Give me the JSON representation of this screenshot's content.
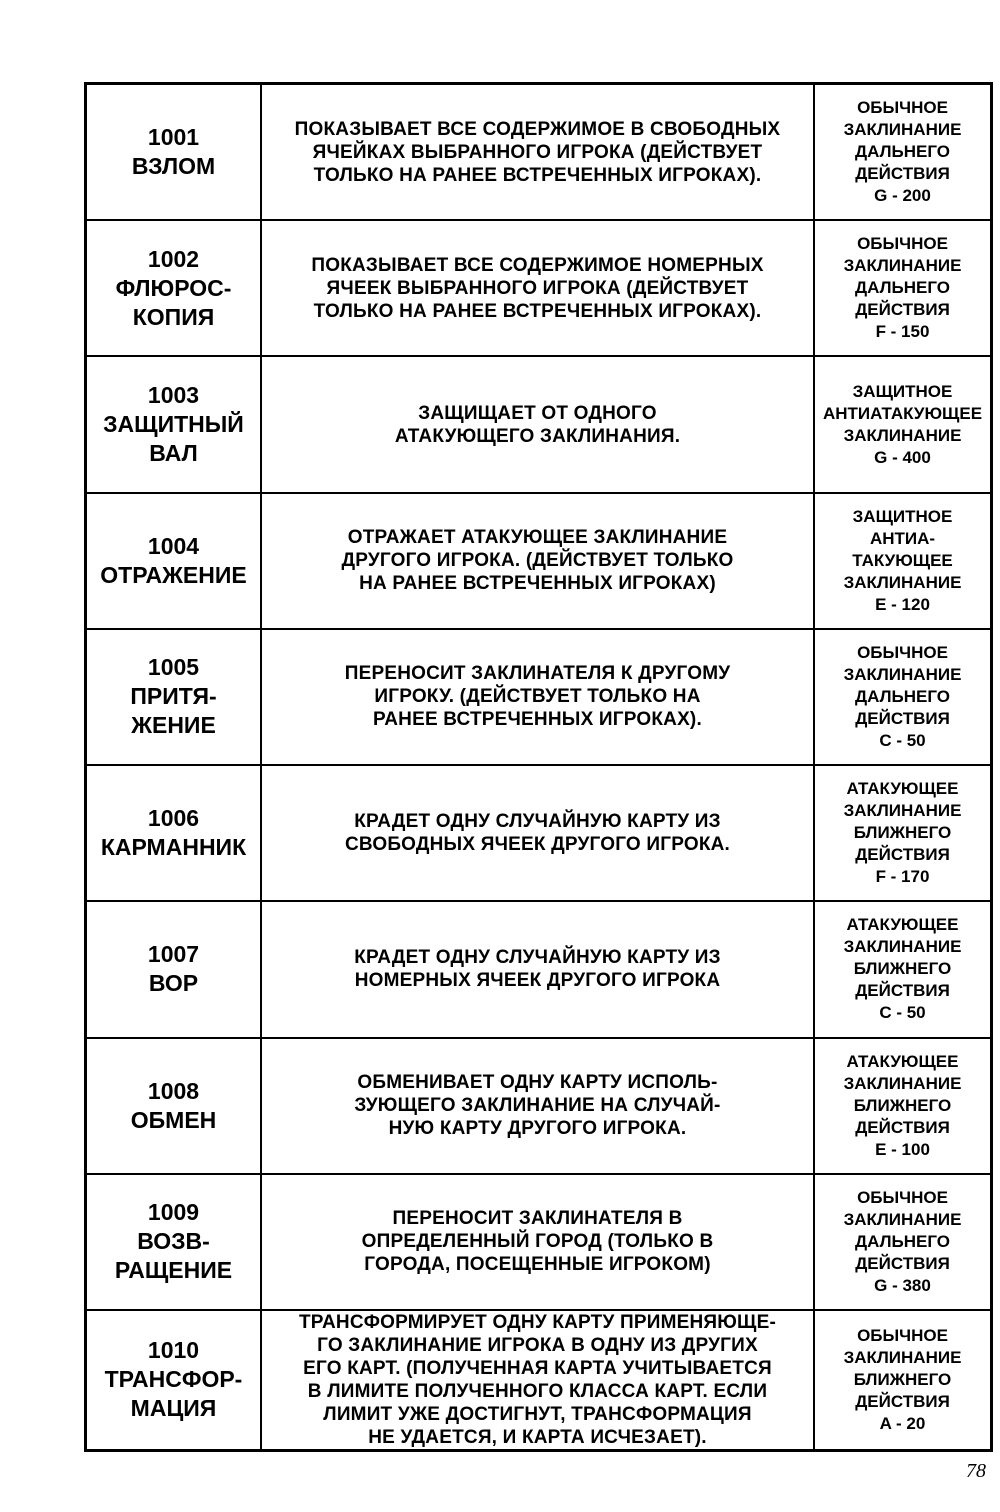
{
  "spells": [
    {
      "name": "1001\nВЗЛОМ",
      "description": "ПОКАЗЫВАЕТ ВСЕ СОДЕРЖИМОЕ  В СВОБОДНЫХ\nЯЧЕЙКАХ ВЫБРАННОГО ИГРОКА (ДЕЙСТВУЕТ\nТОЛЬКО НА РАНЕЕ ВСТРЕЧЕННЫХ ИГРОКАХ).",
      "type": "ОБЫЧНОЕ\nЗАКЛИНАНИЕ\nДАЛЬНЕГО\nДЕЙСТВИЯ\nG - 200"
    },
    {
      "name": "1002\nФЛЮРОС-\nКОПИЯ",
      "description": "ПОКАЗЫВАЕТ ВСЕ СОДЕРЖИМОЕ  НОМЕРНЫХ\nЯЧЕЕК ВЫБРАННОГО ИГРОКА (ДЕЙСТВУЕТ\nТОЛЬКО НА РАНЕЕ ВСТРЕЧЕННЫХ ИГРОКАХ).",
      "type": "ОБЫЧНОЕ\nЗАКЛИНАНИЕ\nДАЛЬНЕГО\nДЕЙСТВИЯ\nF - 150"
    },
    {
      "name": "1003\nЗАЩИТНЫЙ\nВАЛ",
      "description": "ЗАЩИЩАЕТ ОТ ОДНОГО\nАТАКУЮЩЕГО ЗАКЛИНАНИЯ.",
      "type": "ЗАЩИТНОЕ\nАНТИАТАКУЮЩЕЕ\nЗАКЛИНАНИЕ\nG - 400"
    },
    {
      "name": "1004\nОТРАЖЕНИЕ",
      "description": "ОТРАЖАЕТ АТАКУЮЩЕЕ ЗАКЛИНАНИЕ\nДРУГОГО ИГРОКА. (ДЕЙСТВУЕТ ТОЛЬКО\nНА РАНЕЕ ВСТРЕЧЕННЫХ ИГРОКАХ)",
      "type": "ЗАЩИТНОЕ\nАНТИА-\nТАКУЮЩЕЕ\nЗАКЛИНАНИЕ\nE - 120"
    },
    {
      "name": "1005\nПРИТЯ-\nЖЕНИЕ",
      "description": "ПЕРЕНОСИТ ЗАКЛИНАТЕЛЯ К ДРУГОМУ\nИГРОКУ. (ДЕЙСТВУЕТ ТОЛЬКО НА\nРАНЕЕ ВСТРЕЧЕННЫХ ИГРОКАХ).",
      "type": "ОБЫЧНОЕ\nЗАКЛИНАНИЕ\nДАЛЬНЕГО\nДЕЙСТВИЯ\nC - 50"
    },
    {
      "name": "1006\nКАРМАННИК",
      "description": "КРАДЕТ ОДНУ СЛУЧАЙНУЮ КАРТУ ИЗ\nСВОБОДНЫХ ЯЧЕЕК ДРУГОГО ИГРОКА.",
      "type": "АТАКУЮЩЕЕ\nЗАКЛИНАНИЕ\nБЛИЖНЕГО\nДЕЙСТВИЯ\nF - 170"
    },
    {
      "name": "1007\nВОР",
      "description": "КРАДЕТ ОДНУ СЛУЧАЙНУЮ КАРТУ ИЗ\nНОМЕРНЫХ ЯЧЕЕК ДРУГОГО ИГРОКА",
      "type": "АТАКУЮЩЕЕ\nЗАКЛИНАНИЕ\nБЛИЖНЕГО\nДЕЙСТВИЯ\nC - 50"
    },
    {
      "name": "1008\nОБМЕН",
      "description": "ОБМЕНИВАЕТ ОДНУ КАРТУ ИСПОЛЬ-\nЗУЮЩЕГО ЗАКЛИНАНИЕ НА СЛУЧАЙ-\nНУЮ КАРТУ ДРУГОГО ИГРОКА.",
      "type": "АТАКУЮЩЕЕ\nЗАКЛИНАНИЕ\nБЛИЖНЕГО\nДЕЙСТВИЯ\nE - 100"
    },
    {
      "name": "1009\nВОЗВ-\nРАЩЕНИЕ",
      "description": "ПЕРЕНОСИТ ЗАКЛИНАТЕЛЯ В\nОПРЕДЕЛЕННЫЙ ГОРОД (ТОЛЬКО В\nГОРОДА, ПОСЕЩЕННЫЕ ИГРОКОМ)",
      "type": "ОБЫЧНОЕ\nЗАКЛИНАНИЕ\nДАЛЬНЕГО\nДЕЙСТВИЯ\nG - 380"
    },
    {
      "name": "1010\nТРАНСФОР-\nМАЦИЯ",
      "description": "ТРАНСФОРМИРУЕТ ОДНУ КАРТУ ПРИМЕНЯЮЩЕ-\nГО ЗАКЛИНАНИЕ ИГРОКА В ОДНУ ИЗ ДРУГИХ\nЕГО КАРТ. (ПОЛУЧЕННАЯ КАРТА УЧИТЫВАЕТСЯ\nВ ЛИМИТЕ ПОЛУЧЕННОГО КЛАССА КАРТ. ЕСЛИ\nЛИМИТ УЖЕ ДОСТИГНУТ, ТРАНСФОРМАЦИЯ\nНЕ УДАЕТСЯ, И КАРТА ИСЧЕЗАЕТ).",
      "type": "ОБЫЧНОЕ\nЗАКЛИНАНИЕ\nБЛИЖНЕГО\nДЕЙСТВИЯ\nA - 20"
    }
  ],
  "page_number": "78"
}
